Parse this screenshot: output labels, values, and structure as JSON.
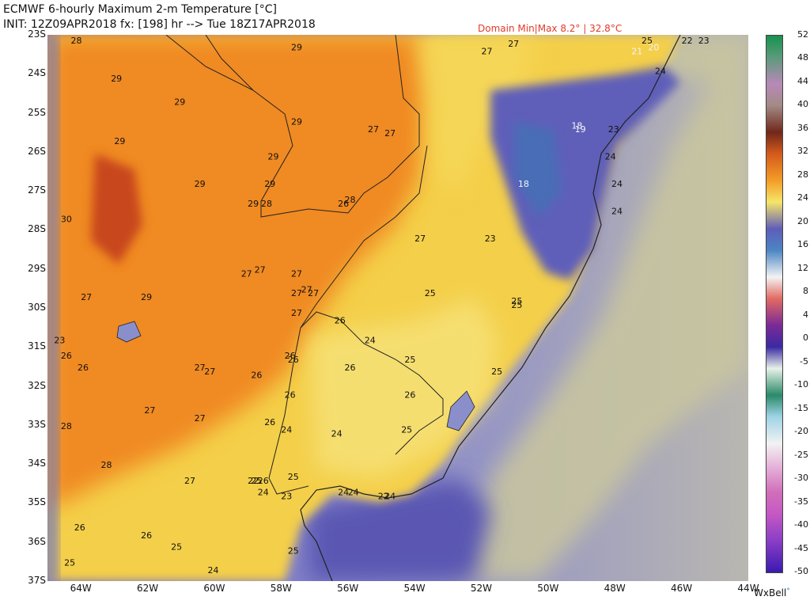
{
  "header": {
    "title": "ECMWF 6-hourly Maximum 2-m Temperature [°C]",
    "init": "INIT: 12Z09APR2018 fx: [198] hr --> Tue 18Z17APR2018",
    "domain_minmax": "Domain Min|Max 8.2° | 32.8°C"
  },
  "credit": {
    "text": "WxBell",
    "dot": "°"
  },
  "axes": {
    "lat_labels": [
      "23S",
      "24S",
      "25S",
      "26S",
      "27S",
      "28S",
      "29S",
      "30S",
      "31S",
      "32S",
      "33S",
      "34S",
      "35S",
      "36S",
      "37S"
    ],
    "lon_labels": [
      "64W",
      "62W",
      "60W",
      "58W",
      "56W",
      "54W",
      "52W",
      "50W",
      "48W",
      "46W",
      "44W"
    ]
  },
  "legend": {
    "labels": [
      "52",
      "48",
      "44",
      "40",
      "36",
      "32",
      "28",
      "24",
      "20",
      "16",
      "12",
      "8",
      "4",
      "0",
      "-5",
      "-10",
      "-15",
      "-20",
      "-25",
      "-30",
      "-35",
      "-40",
      "-45",
      "-50"
    ],
    "colors": {
      "orange": "#f28a22",
      "dark_orange": "#d95a1c",
      "yellow": "#f5d64e",
      "light_yellow": "#f3e89a",
      "purple": "#5a58b8",
      "lavender": "#8d8fcf",
      "gray_green": "#c8c6a6"
    }
  },
  "map_values": [
    {
      "v": "28",
      "lon": -64.3,
      "lat": -23.1
    },
    {
      "v": "29",
      "lon": -57.7,
      "lat": -23.4
    },
    {
      "v": "27",
      "lon": -52.0,
      "lat": -23.5
    },
    {
      "v": "27",
      "lon": -51.2,
      "lat": -23.3
    },
    {
      "v": "25",
      "lon": -47.2,
      "lat": -22.8
    },
    {
      "v": "23",
      "lon": -45.5,
      "lat": -22.9
    },
    {
      "v": "22",
      "lon": -46.0,
      "lat": -23.2
    },
    {
      "v": "20",
      "lon": -47.0,
      "lat": -23.4
    },
    {
      "v": "21",
      "lon": -47.5,
      "lat": -23.5
    },
    {
      "v": "24",
      "lon": -46.8,
      "lat": -24.0
    },
    {
      "v": "29",
      "lon": -63.1,
      "lat": -24.2
    },
    {
      "v": "29",
      "lon": -61.2,
      "lat": -24.8
    },
    {
      "v": "29",
      "lon": -57.7,
      "lat": -25.3
    },
    {
      "v": "27",
      "lon": -55.4,
      "lat": -25.5
    },
    {
      "v": "27",
      "lon": -54.9,
      "lat": -25.6
    },
    {
      "v": "18",
      "lon": -49.3,
      "lat": -25.4
    },
    {
      "v": "19",
      "lon": -49.2,
      "lat": -25.5
    },
    {
      "v": "23",
      "lon": -48.2,
      "lat": -25.5
    },
    {
      "v": "29",
      "lon": -63.0,
      "lat": -25.8
    },
    {
      "v": "29",
      "lon": -58.4,
      "lat": -26.2
    },
    {
      "v": "24",
      "lon": -48.3,
      "lat": -26.2
    },
    {
      "v": "29",
      "lon": -60.6,
      "lat": -26.9
    },
    {
      "v": "29",
      "lon": -58.5,
      "lat": -26.9
    },
    {
      "v": "18",
      "lon": -50.9,
      "lat": -26.9
    },
    {
      "v": "24",
      "lon": -48.1,
      "lat": -26.9
    },
    {
      "v": "28",
      "lon": -58.6,
      "lat": -27.4
    },
    {
      "v": "29",
      "lon": -59.0,
      "lat": -27.4
    },
    {
      "v": "28",
      "lon": -56.1,
      "lat": -27.3
    },
    {
      "v": "26",
      "lon": -56.3,
      "lat": -27.4
    },
    {
      "v": "24",
      "lon": -48.1,
      "lat": -27.6
    },
    {
      "v": "30",
      "lon": -64.6,
      "lat": -27.8
    },
    {
      "v": "27",
      "lon": -54.0,
      "lat": -28.3
    },
    {
      "v": "23",
      "lon": -51.9,
      "lat": -28.3
    },
    {
      "v": "27",
      "lon": -59.2,
      "lat": -29.2
    },
    {
      "v": "27",
      "lon": -58.8,
      "lat": -29.1
    },
    {
      "v": "27",
      "lon": -57.7,
      "lat": -29.2
    },
    {
      "v": "27",
      "lon": -64.0,
      "lat": -29.8
    },
    {
      "v": "29",
      "lon": -62.2,
      "lat": -29.8
    },
    {
      "v": "27",
      "lon": -57.7,
      "lat": -29.7
    },
    {
      "v": "27",
      "lon": -57.2,
      "lat": -29.7
    },
    {
      "v": "27",
      "lon": -57.4,
      "lat": -29.6
    },
    {
      "v": "25",
      "lon": -53.7,
      "lat": -29.7
    },
    {
      "v": "25",
      "lon": -51.1,
      "lat": -29.9
    },
    {
      "v": "25",
      "lon": -51.1,
      "lat": -30.0
    },
    {
      "v": "27",
      "lon": -57.7,
      "lat": -30.2
    },
    {
      "v": "26",
      "lon": -56.4,
      "lat": -30.4
    },
    {
      "v": "24",
      "lon": -55.5,
      "lat": -30.9
    },
    {
      "v": "23",
      "lon": -64.8,
      "lat": -30.9
    },
    {
      "v": "26",
      "lon": -64.6,
      "lat": -31.3
    },
    {
      "v": "26",
      "lon": -57.9,
      "lat": -31.3
    },
    {
      "v": "26",
      "lon": -57.8,
      "lat": -31.4
    },
    {
      "v": "25",
      "lon": -54.3,
      "lat": -31.4
    },
    {
      "v": "26",
      "lon": -64.1,
      "lat": -31.6
    },
    {
      "v": "27",
      "lon": -60.6,
      "lat": -31.6
    },
    {
      "v": "27",
      "lon": -60.3,
      "lat": -31.7
    },
    {
      "v": "26",
      "lon": -58.9,
      "lat": -31.8
    },
    {
      "v": "26",
      "lon": -56.1,
      "lat": -31.6
    },
    {
      "v": "25",
      "lon": -51.7,
      "lat": -31.7
    },
    {
      "v": "26",
      "lon": -57.9,
      "lat": -32.3
    },
    {
      "v": "26",
      "lon": -54.3,
      "lat": -32.3
    },
    {
      "v": "27",
      "lon": -62.1,
      "lat": -32.7
    },
    {
      "v": "27",
      "lon": -60.6,
      "lat": -32.9
    },
    {
      "v": "26",
      "lon": -58.5,
      "lat": -33.0
    },
    {
      "v": "25",
      "lon": -54.4,
      "lat": -33.2
    },
    {
      "v": "28",
      "lon": -64.6,
      "lat": -33.1
    },
    {
      "v": "24",
      "lon": -58.0,
      "lat": -33.2
    },
    {
      "v": "24",
      "lon": -56.5,
      "lat": -33.3
    },
    {
      "v": "28",
      "lon": -63.4,
      "lat": -34.1
    },
    {
      "v": "27",
      "lon": -60.9,
      "lat": -34.5
    },
    {
      "v": "25",
      "lon": -57.8,
      "lat": -34.4
    },
    {
      "v": "22",
      "lon": -59.0,
      "lat": -34.5
    },
    {
      "v": "25",
      "lon": -58.9,
      "lat": -34.5
    },
    {
      "v": "26",
      "lon": -58.7,
      "lat": -34.5
    },
    {
      "v": "24",
      "lon": -58.7,
      "lat": -34.8
    },
    {
      "v": "23",
      "lon": -58.0,
      "lat": -34.9
    },
    {
      "v": "24",
      "lon": -56.3,
      "lat": -34.8
    },
    {
      "v": "24",
      "lon": -56.0,
      "lat": -34.8
    },
    {
      "v": "22",
      "lon": -55.1,
      "lat": -34.9
    },
    {
      "v": "24",
      "lon": -54.9,
      "lat": -34.9
    },
    {
      "v": "26",
      "lon": -64.2,
      "lat": -35.7
    },
    {
      "v": "26",
      "lon": -62.2,
      "lat": -35.9
    },
    {
      "v": "25",
      "lon": -61.3,
      "lat": -36.2
    },
    {
      "v": "25",
      "lon": -57.8,
      "lat": -36.3
    },
    {
      "v": "25",
      "lon": -64.5,
      "lat": -36.6
    },
    {
      "v": "24",
      "lon": -60.2,
      "lat": -36.8
    }
  ]
}
